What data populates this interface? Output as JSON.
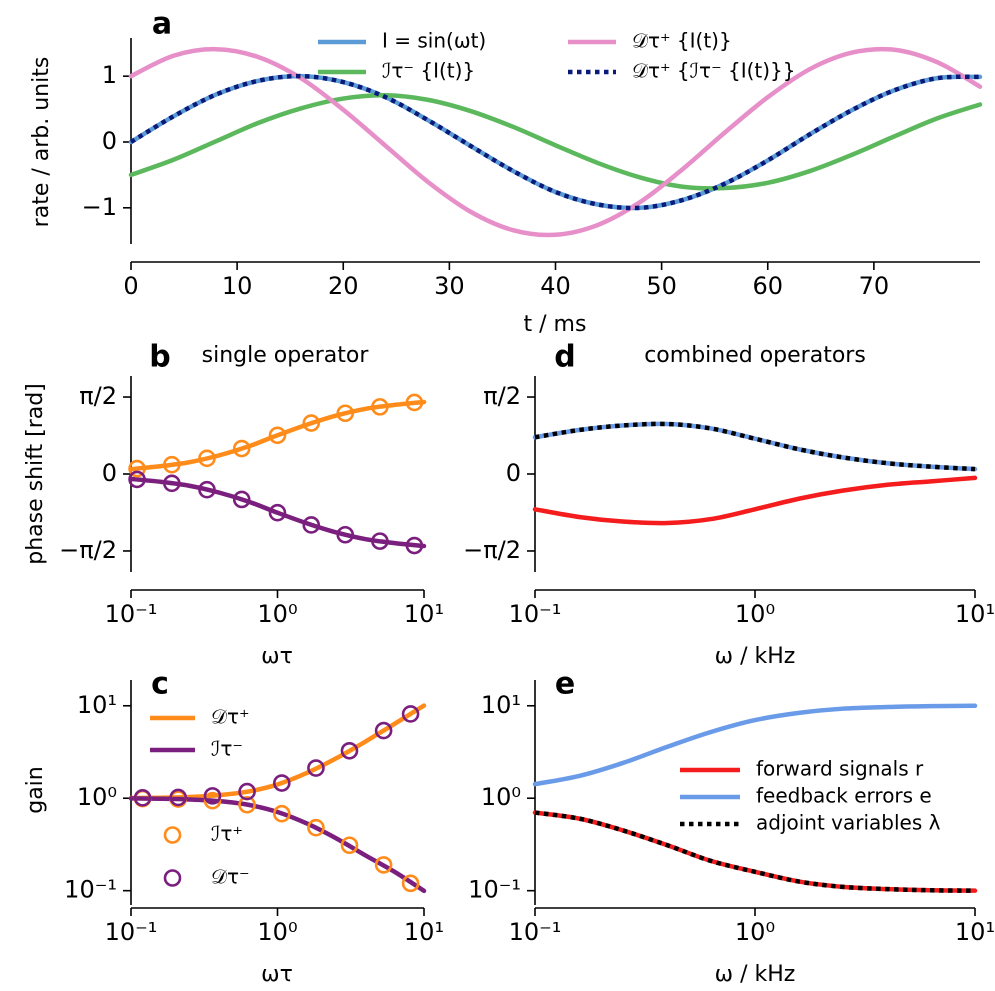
{
  "chart_data": [
    {
      "type": "line",
      "label": "a",
      "xlabel": "t / ms",
      "ylabel": "rate / arb. units",
      "xlim": [
        0,
        80
      ],
      "ylim": [
        -1.55,
        1.58
      ],
      "xticks": [
        0,
        10,
        20,
        30,
        40,
        50,
        60,
        70
      ],
      "yticks": [
        {
          "value": -1,
          "label": "−1"
        },
        0,
        1
      ],
      "x": [
        0,
        4,
        8,
        12,
        16,
        20,
        24,
        28,
        32,
        36,
        40,
        44,
        48,
        52,
        56,
        60,
        64,
        68,
        72,
        76,
        80
      ],
      "series": [
        {
          "name": "I = sin(ωt)",
          "color": "#5a9bd5",
          "style": "solid",
          "values": [
            0,
            0.39,
            0.72,
            0.93,
            1.0,
            0.91,
            0.68,
            0.33,
            -0.06,
            -0.44,
            -0.76,
            -0.95,
            -1.0,
            -0.88,
            -0.63,
            -0.28,
            0.12,
            0.49,
            0.79,
            0.97,
            0.99
          ]
        },
        {
          "name": "ℐτ⁻ {I(t)}",
          "color": "#5cb85c",
          "style": "solid",
          "values": [
            -0.5,
            -0.27,
            0.01,
            0.29,
            0.51,
            0.66,
            0.71,
            0.64,
            0.47,
            0.23,
            -0.05,
            -0.32,
            -0.54,
            -0.68,
            -0.7,
            -0.62,
            -0.44,
            -0.19,
            0.09,
            0.36,
            0.57
          ]
        },
        {
          "name": "𝒟τ⁺ {I(t)}",
          "color": "#e68fc8",
          "style": "solid",
          "values": [
            1.0,
            1.31,
            1.41,
            1.29,
            0.97,
            0.49,
            -0.06,
            -0.61,
            -1.06,
            -1.34,
            -1.41,
            -1.26,
            -0.91,
            -0.41,
            0.15,
            0.68,
            1.11,
            1.36,
            1.4,
            1.21,
            0.84
          ]
        },
        {
          "name": "𝒟τ⁺ {ℐτ⁻ {I(t)}}",
          "color": "#0a1a7a",
          "style": "dotted",
          "values": [
            0,
            0.39,
            0.72,
            0.93,
            1.0,
            0.91,
            0.68,
            0.33,
            -0.06,
            -0.44,
            -0.76,
            -0.95,
            -1.0,
            -0.88,
            -0.63,
            -0.28,
            0.12,
            0.49,
            0.79,
            0.97,
            0.99
          ]
        }
      ]
    },
    {
      "type": "line",
      "label": "b",
      "title": "single operator",
      "xlabel": "ωτ",
      "ylabel": "phase shift [rad]",
      "xscale": "log",
      "xlim": [
        0.1,
        10
      ],
      "ylim": [
        -2,
        2
      ],
      "xticks": [
        {
          "value": 0.1,
          "label": "10⁻¹"
        },
        {
          "value": 1,
          "label": "10⁰"
        },
        {
          "value": 10,
          "label": "10¹"
        }
      ],
      "yticks": [
        {
          "value": -1.5708,
          "label": "−π/2"
        },
        0,
        {
          "value": 1.5708,
          "label": "π/2"
        }
      ],
      "x": [
        0.1,
        0.16,
        0.25,
        0.4,
        0.63,
        1,
        1.6,
        2.5,
        4,
        6.3,
        10
      ],
      "series": [
        {
          "color": "#ff8c1a",
          "style": "solid",
          "values": [
            0.1,
            0.16,
            0.24,
            0.38,
            0.56,
            0.79,
            1.01,
            1.19,
            1.33,
            1.41,
            1.47
          ]
        },
        {
          "color": "#7b1f7f",
          "style": "solid",
          "values": [
            -0.1,
            -0.16,
            -0.24,
            -0.38,
            -0.56,
            -0.79,
            -1.01,
            -1.19,
            -1.33,
            -1.41,
            -1.47
          ]
        },
        {
          "color": "#ff8c1a",
          "style": "markers",
          "x": [
            0.11,
            0.19,
            0.33,
            0.57,
            1.0,
            1.7,
            2.9,
            5.0,
            8.6
          ],
          "values": [
            0.11,
            0.19,
            0.32,
            0.52,
            0.79,
            1.04,
            1.24,
            1.37,
            1.46
          ]
        },
        {
          "color": "#7b1f7f",
          "style": "markers",
          "x": [
            0.11,
            0.19,
            0.33,
            0.57,
            1.0,
            1.7,
            2.9,
            5.0,
            8.6
          ],
          "values": [
            -0.11,
            -0.19,
            -0.32,
            -0.52,
            -0.79,
            -1.04,
            -1.24,
            -1.37,
            -1.46
          ]
        }
      ]
    },
    {
      "type": "line",
      "label": "c",
      "xlabel": "ωτ",
      "ylabel": "gain",
      "xscale": "log",
      "yscale": "log",
      "xlim": [
        0.1,
        10
      ],
      "ylim": [
        0.07,
        19
      ],
      "xticks": [
        {
          "value": 0.1,
          "label": "10⁻¹"
        },
        {
          "value": 1,
          "label": "10⁰"
        },
        {
          "value": 10,
          "label": "10¹"
        }
      ],
      "yticks": [
        {
          "value": 0.1,
          "label": "10⁻¹"
        },
        {
          "value": 1,
          "label": "10⁰"
        },
        {
          "value": 10,
          "label": "10¹"
        }
      ],
      "x": [
        0.1,
        0.16,
        0.25,
        0.4,
        0.63,
        1,
        1.6,
        2.5,
        4,
        6.3,
        10
      ],
      "series": [
        {
          "name": "𝒟τ⁺",
          "color": "#ff8c1a",
          "style": "solid",
          "values": [
            1.005,
            1.013,
            1.03,
            1.08,
            1.18,
            1.41,
            1.89,
            2.69,
            4.12,
            6.38,
            10.05
          ]
        },
        {
          "name": "ℐτ⁻",
          "color": "#7b1f7f",
          "style": "solid",
          "values": [
            0.995,
            0.987,
            0.97,
            0.93,
            0.85,
            0.71,
            0.53,
            0.37,
            0.24,
            0.16,
            0.0995
          ]
        },
        {
          "name": "ℐτ⁺",
          "color": "#ff8c1a",
          "style": "markers",
          "x": [
            0.12,
            0.21,
            0.36,
            0.62,
            1.07,
            1.83,
            3.1,
            5.3,
            8.1
          ],
          "values": [
            0.99,
            0.98,
            0.94,
            0.85,
            0.68,
            0.48,
            0.31,
            0.19,
            0.12
          ]
        },
        {
          "name": "𝒟τ⁻",
          "color": "#7b1f7f",
          "style": "markers",
          "x": [
            0.12,
            0.21,
            0.36,
            0.62,
            1.07,
            1.83,
            3.1,
            5.3,
            8.1
          ],
          "values": [
            1.01,
            1.02,
            1.06,
            1.18,
            1.46,
            2.12,
            3.26,
            5.39,
            8.16
          ]
        }
      ]
    },
    {
      "type": "line",
      "label": "d",
      "title": "combined operators",
      "xlabel": "ω / kHz",
      "xscale": "log",
      "xlim": [
        0.1,
        10
      ],
      "ylim": [
        -2,
        2
      ],
      "xticks": [
        {
          "value": 0.1,
          "label": "10⁻¹"
        },
        {
          "value": 1,
          "label": "10⁰"
        },
        {
          "value": 10,
          "label": "10¹"
        }
      ],
      "yticks": [
        {
          "value": -1.5708,
          "label": "−π/2"
        },
        0,
        {
          "value": 1.5708,
          "label": "π/2"
        }
      ],
      "x": [
        0.1,
        0.16,
        0.25,
        0.4,
        0.63,
        1,
        1.6,
        2.5,
        4,
        6.3,
        10
      ],
      "series": [
        {
          "color": "#f41c1c",
          "style": "solid",
          "values": [
            -0.72,
            -0.88,
            -0.97,
            -1.0,
            -0.92,
            -0.72,
            -0.5,
            -0.34,
            -0.22,
            -0.15,
            -0.08
          ]
        },
        {
          "color": "#6a9be8",
          "style": "solid",
          "values": [
            0.75,
            0.9,
            0.99,
            1.02,
            0.93,
            0.72,
            0.5,
            0.34,
            0.22,
            0.15,
            0.1
          ]
        },
        {
          "color": "#000000",
          "style": "dotted",
          "values": [
            0.75,
            0.9,
            0.99,
            1.02,
            0.93,
            0.72,
            0.5,
            0.34,
            0.22,
            0.15,
            0.1
          ]
        }
      ]
    },
    {
      "type": "line",
      "label": "e",
      "xlabel": "ω / kHz",
      "xscale": "log",
      "yscale": "log",
      "xlim": [
        0.1,
        10
      ],
      "ylim": [
        0.07,
        19
      ],
      "xticks": [
        {
          "value": 0.1,
          "label": "10⁻¹"
        },
        {
          "value": 1,
          "label": "10⁰"
        },
        {
          "value": 10,
          "label": "10¹"
        }
      ],
      "yticks": [
        {
          "value": 0.1,
          "label": "10⁻¹"
        },
        {
          "value": 1,
          "label": "10⁰"
        },
        {
          "value": 10,
          "label": "10¹"
        }
      ],
      "x": [
        0.1,
        0.16,
        0.25,
        0.4,
        0.63,
        1,
        1.6,
        2.5,
        4,
        6.3,
        10
      ],
      "series": [
        {
          "name": "forward signals r",
          "color": "#f41c1c",
          "style": "solid",
          "values": [
            0.7,
            0.6,
            0.45,
            0.31,
            0.21,
            0.16,
            0.125,
            0.11,
            0.104,
            0.101,
            0.1
          ]
        },
        {
          "name": "feedback errors e",
          "color": "#6a9be8",
          "style": "solid",
          "values": [
            1.42,
            1.75,
            2.4,
            3.6,
            5.2,
            7.0,
            8.4,
            9.3,
            9.7,
            9.9,
            10.0
          ]
        },
        {
          "name": "adjoint variables λ",
          "color": "#000000",
          "style": "dotted",
          "values": [
            0.7,
            0.6,
            0.45,
            0.31,
            0.21,
            0.16,
            0.125,
            0.11,
            0.104,
            0.101,
            0.1
          ]
        }
      ]
    }
  ]
}
